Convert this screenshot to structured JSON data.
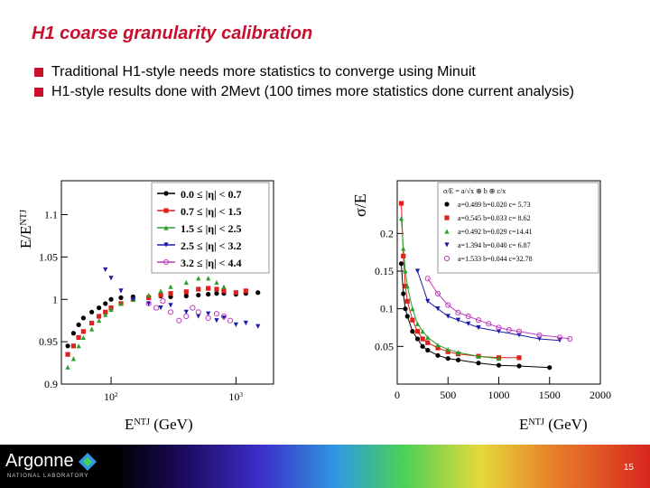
{
  "slide": {
    "title": "H1 coarse granularity calibration",
    "bullets": [
      "Traditional H1-style needs more statistics to converge using Minuit",
      "H1-style results done with 2Mevt (100 times more statistics done current analysis)"
    ],
    "page_number": "15"
  },
  "logo": {
    "name": "Argonne",
    "subtitle": "NATIONAL LABORATORY"
  },
  "chart_data": [
    {
      "type": "scatter",
      "ylabel": "E/E^NTJ",
      "xlabel": "E^NTJ (GeV)",
      "xscale": "log",
      "xlim": [
        40,
        2000
      ],
      "ylim": [
        0.9,
        1.14
      ],
      "yticks": [
        "0.9",
        "0.95",
        "1",
        "1.05",
        "1.1"
      ],
      "xticks": [
        "10^2",
        "10^3"
      ],
      "legend_position": "top-right",
      "series": [
        {
          "name": "0.0 ≤ |η| < 0.7",
          "color": "#000000",
          "x": [
            45,
            50,
            55,
            60,
            70,
            80,
            90,
            100,
            120,
            150,
            200,
            250,
            300,
            400,
            500,
            600,
            700,
            800,
            1000,
            1200,
            1500
          ],
          "y": [
            0.945,
            0.96,
            0.97,
            0.978,
            0.985,
            0.99,
            0.995,
            1.0,
            1.002,
            1.003,
            1.003,
            1.004,
            1.003,
            1.004,
            1.005,
            1.006,
            1.007,
            1.007,
            1.006,
            1.007,
            1.008
          ]
        },
        {
          "name": "0.7 ≤ |η| < 1.5",
          "color": "#e0201a",
          "x": [
            45,
            50,
            55,
            60,
            70,
            80,
            90,
            100,
            120,
            150,
            200,
            250,
            300,
            400,
            500,
            600,
            700,
            800,
            1000,
            1200
          ],
          "y": [
            0.935,
            0.945,
            0.955,
            0.962,
            0.972,
            0.98,
            0.985,
            0.99,
            0.995,
            1.0,
            1.002,
            1.005,
            1.007,
            1.009,
            1.012,
            1.013,
            1.012,
            1.01,
            1.008,
            1.01
          ]
        },
        {
          "name": "1.5 ≤ |η| < 2.5",
          "color": "#2aa02a",
          "x": [
            45,
            50,
            55,
            60,
            70,
            80,
            90,
            100,
            120,
            150,
            200,
            250,
            300,
            400,
            500,
            600,
            700,
            800
          ],
          "y": [
            0.92,
            0.93,
            0.945,
            0.955,
            0.965,
            0.975,
            0.982,
            0.988,
            0.995,
            1.0,
            1.005,
            1.01,
            1.015,
            1.02,
            1.025,
            1.025,
            1.02,
            1.015
          ]
        },
        {
          "name": "2.5 ≤ |η| < 3.2",
          "color": "#1a1aa8",
          "x": [
            90,
            100,
            120,
            150,
            200,
            250,
            300,
            400,
            500,
            600,
            700,
            800,
            1000,
            1200,
            1500
          ],
          "y": [
            1.035,
            1.025,
            1.01,
            1.0,
            0.995,
            0.99,
            0.993,
            0.985,
            0.98,
            0.983,
            0.975,
            0.978,
            0.97,
            0.972,
            0.968
          ]
        },
        {
          "name": "3.2 ≤ |η| < 4.4",
          "color": "#c040c0",
          "x": [
            200,
            230,
            260,
            300,
            350,
            400,
            450,
            500,
            600,
            700,
            800,
            900
          ],
          "y": [
            0.995,
            0.99,
            0.998,
            0.985,
            0.975,
            0.98,
            0.99,
            0.985,
            0.978,
            0.983,
            0.98,
            0.975
          ]
        }
      ]
    },
    {
      "type": "scatter",
      "ylabel": "σ/E",
      "xlabel": "E^NTJ (GeV)",
      "xlim": [
        0,
        2000
      ],
      "ylim": [
        0,
        0.27
      ],
      "yticks": [
        "0.05",
        "0.1",
        "0.15",
        "0.2"
      ],
      "xticks": [
        "0",
        "500",
        "1000",
        "1500",
        "2000"
      ],
      "legend_position": "top-right",
      "legend_header": "σ/E = a/√x ⊕ b ⊕ c/x",
      "series": [
        {
          "name": "a=0.489 b=0.020 c= 5.73",
          "color": "#000000",
          "x": [
            40,
            60,
            80,
            100,
            150,
            200,
            250,
            300,
            400,
            500,
            600,
            800,
            1000,
            1200,
            1500
          ],
          "y": [
            0.16,
            0.12,
            0.1,
            0.09,
            0.07,
            0.06,
            0.05,
            0.045,
            0.038,
            0.034,
            0.032,
            0.028,
            0.025,
            0.024,
            0.022
          ]
        },
        {
          "name": "a=0.545 b=0.033 c= 8.62",
          "color": "#e0201a",
          "x": [
            40,
            60,
            80,
            100,
            150,
            200,
            250,
            300,
            400,
            500,
            600,
            800,
            1000,
            1200
          ],
          "y": [
            0.24,
            0.17,
            0.13,
            0.11,
            0.085,
            0.07,
            0.06,
            0.055,
            0.048,
            0.043,
            0.04,
            0.037,
            0.035,
            0.035
          ]
        },
        {
          "name": "a=0.492 b=0.029 c=14.41",
          "color": "#2aa02a",
          "x": [
            40,
            60,
            80,
            100,
            150,
            200,
            250,
            300,
            400,
            500,
            600,
            800,
            1000
          ],
          "y": [
            0.22,
            0.18,
            0.15,
            0.13,
            0.1,
            0.08,
            0.07,
            0.062,
            0.052,
            0.046,
            0.042,
            0.037,
            0.034
          ]
        },
        {
          "name": "a=1.394 b=0.040 c= 6.87",
          "color": "#1a1aa8",
          "x": [
            200,
            300,
            400,
            500,
            600,
            700,
            800,
            1000,
            1200,
            1400,
            1600
          ],
          "y": [
            0.15,
            0.11,
            0.1,
            0.09,
            0.085,
            0.08,
            0.075,
            0.07,
            0.065,
            0.06,
            0.058
          ]
        },
        {
          "name": "a=1.533 b=0.044 c=32.78",
          "color": "#c040c0",
          "x": [
            300,
            400,
            500,
            600,
            700,
            800,
            900,
            1000,
            1100,
            1200,
            1400,
            1600,
            1700
          ],
          "y": [
            0.14,
            0.12,
            0.105,
            0.095,
            0.09,
            0.085,
            0.08,
            0.075,
            0.072,
            0.07,
            0.065,
            0.062,
            0.06
          ]
        }
      ]
    }
  ]
}
